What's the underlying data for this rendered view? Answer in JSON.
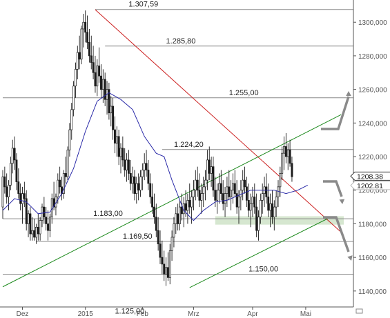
{
  "chart_data": {
    "type": "candlestick",
    "x_axis": {
      "labels": [
        "Dez",
        "2015",
        "Feb",
        "Mrz",
        "Apr",
        "Mai"
      ],
      "label_bar_index": [
        10,
        42,
        71,
        97,
        127,
        154
      ]
    },
    "y_axis": {
      "side": "right",
      "range": [
        1132,
        1312
      ],
      "ticks": [
        1140,
        1160,
        1180,
        1200,
        1220,
        1240,
        1260,
        1280,
        1300
      ],
      "tick_labels": [
        "1140,000",
        "1160,000",
        "1180,000",
        "1200,000",
        "1220,000",
        "1240,000",
        "1260,000",
        "1280,000",
        "1300,000"
      ]
    },
    "price_boxes": [
      {
        "label": "1208.38",
        "value": 1208.38,
        "style": "bordered"
      },
      {
        "label": "1202.81",
        "value": 1202.81,
        "style": "plain"
      }
    ],
    "levels": [
      {
        "value": 1307.59,
        "label": "1.307,59",
        "from_bar": 47,
        "label_bar": 64
      },
      {
        "value": 1285.8,
        "label": "1.285,80",
        "from_bar": 52,
        "label_bar": 83
      },
      {
        "value": 1255.0,
        "label": "1.255,00",
        "from_bar": 0,
        "label_bar": 115
      },
      {
        "value": 1224.2,
        "label": "1.224,20",
        "from_bar": 81,
        "label_bar": 87
      },
      {
        "value": 1183.0,
        "label": "1.183,00",
        "from_bar": 0,
        "label_bar": 46
      },
      {
        "value": 1169.5,
        "label": "1.169,50",
        "from_bar": 17,
        "label_bar": 61
      },
      {
        "value": 1150.0,
        "label": "1.150,00",
        "from_bar": 0,
        "label_bar": 125
      },
      {
        "value": 1125.0,
        "label": "1.125,00",
        "from_bar": null,
        "label_bar": 57
      }
    ],
    "support_zone": {
      "from": 1179.5,
      "to": 1184.5,
      "from_bar": 108,
      "color": "#cfe3c8"
    },
    "trendlines": [
      {
        "color": "#cc1f1f",
        "points": [
          [
            47,
            1307.5
          ],
          [
            172,
            1175.0
          ]
        ]
      },
      {
        "color": "#1d8a1d",
        "points": [
          [
            0,
            1142.5
          ],
          [
            172,
            1245.0
          ]
        ]
      },
      {
        "color": "#1d8a1d",
        "points": [
          [
            95,
            1142.0
          ],
          [
            165,
            1183.0
          ]
        ]
      }
    ],
    "moving_average": [
      [
        0,
        1188
      ],
      [
        6,
        1195
      ],
      [
        12,
        1193
      ],
      [
        18,
        1186
      ],
      [
        24,
        1187
      ],
      [
        30,
        1198
      ],
      [
        36,
        1213
      ],
      [
        42,
        1235
      ],
      [
        48,
        1253
      ],
      [
        54,
        1258
      ],
      [
        60,
        1254
      ],
      [
        66,
        1248
      ],
      [
        72,
        1232
      ],
      [
        78,
        1222
      ],
      [
        82,
        1220
      ],
      [
        86,
        1206
      ],
      [
        92,
        1188
      ],
      [
        97,
        1182
      ],
      [
        102,
        1188
      ],
      [
        108,
        1193
      ],
      [
        114,
        1194
      ],
      [
        120,
        1197
      ],
      [
        126,
        1200
      ],
      [
        132,
        1200
      ],
      [
        138,
        1200
      ],
      [
        144,
        1198
      ],
      [
        150,
        1200
      ],
      [
        155,
        1203
      ]
    ],
    "candles": [
      [
        1190,
        1212,
        1183,
        1208
      ],
      [
        1208,
        1214,
        1198,
        1202
      ],
      [
        1202,
        1210,
        1192,
        1196
      ],
      [
        1196,
        1206,
        1188,
        1203
      ],
      [
        1203,
        1220,
        1200,
        1216
      ],
      [
        1216,
        1230,
        1210,
        1225
      ],
      [
        1225,
        1232,
        1212,
        1218
      ],
      [
        1218,
        1222,
        1200,
        1205
      ],
      [
        1205,
        1213,
        1195,
        1198
      ],
      [
        1198,
        1204,
        1188,
        1192
      ],
      [
        1192,
        1202,
        1180,
        1198
      ],
      [
        1198,
        1205,
        1190,
        1195
      ],
      [
        1195,
        1200,
        1176,
        1180
      ],
      [
        1180,
        1188,
        1172,
        1186
      ],
      [
        1186,
        1190,
        1170,
        1174
      ],
      [
        1174,
        1184,
        1170,
        1176
      ],
      [
        1176,
        1183,
        1170,
        1172
      ],
      [
        1172,
        1180,
        1168,
        1178
      ],
      [
        1178,
        1186,
        1170,
        1174
      ],
      [
        1174,
        1184,
        1170,
        1182
      ],
      [
        1182,
        1192,
        1178,
        1190
      ],
      [
        1190,
        1196,
        1180,
        1184
      ],
      [
        1184,
        1190,
        1176,
        1180
      ],
      [
        1180,
        1188,
        1170,
        1176
      ],
      [
        1176,
        1186,
        1172,
        1184
      ],
      [
        1184,
        1198,
        1180,
        1195
      ],
      [
        1195,
        1205,
        1188,
        1190
      ],
      [
        1190,
        1198,
        1185,
        1196
      ],
      [
        1196,
        1210,
        1192,
        1206
      ],
      [
        1206,
        1214,
        1198,
        1202
      ],
      [
        1202,
        1208,
        1194,
        1198
      ],
      [
        1198,
        1212,
        1195,
        1210
      ],
      [
        1210,
        1220,
        1204,
        1208
      ],
      [
        1208,
        1226,
        1206,
        1224
      ],
      [
        1224,
        1240,
        1220,
        1236
      ],
      [
        1236,
        1252,
        1230,
        1248
      ],
      [
        1248,
        1265,
        1244,
        1262
      ],
      [
        1262,
        1276,
        1255,
        1272
      ],
      [
        1272,
        1286,
        1266,
        1282
      ],
      [
        1282,
        1292,
        1272,
        1278
      ],
      [
        1278,
        1298,
        1275,
        1296
      ],
      [
        1296,
        1305,
        1285,
        1300
      ],
      [
        1300,
        1307,
        1288,
        1294
      ],
      [
        1294,
        1304,
        1284,
        1288
      ],
      [
        1288,
        1296,
        1276,
        1280
      ],
      [
        1280,
        1292,
        1272,
        1276
      ],
      [
        1276,
        1286,
        1266,
        1270
      ],
      [
        1270,
        1280,
        1258,
        1262
      ],
      [
        1262,
        1278,
        1256,
        1274
      ],
      [
        1274,
        1285,
        1264,
        1268
      ],
      [
        1268,
        1275,
        1255,
        1260
      ],
      [
        1260,
        1272,
        1252,
        1266
      ],
      [
        1266,
        1270,
        1250,
        1254
      ],
      [
        1254,
        1265,
        1245,
        1260
      ],
      [
        1260,
        1264,
        1242,
        1246
      ],
      [
        1246,
        1256,
        1238,
        1250
      ],
      [
        1250,
        1255,
        1230,
        1236
      ],
      [
        1236,
        1244,
        1222,
        1228
      ],
      [
        1228,
        1238,
        1220,
        1232
      ],
      [
        1232,
        1236,
        1215,
        1220
      ],
      [
        1220,
        1228,
        1210,
        1225
      ],
      [
        1225,
        1232,
        1214,
        1218
      ],
      [
        1218,
        1225,
        1208,
        1212
      ],
      [
        1212,
        1222,
        1205,
        1218
      ],
      [
        1218,
        1224,
        1206,
        1210
      ],
      [
        1210,
        1218,
        1200,
        1204
      ],
      [
        1204,
        1214,
        1198,
        1208
      ],
      [
        1208,
        1212,
        1194,
        1198
      ],
      [
        1198,
        1208,
        1192,
        1204
      ],
      [
        1204,
        1210,
        1194,
        1200
      ],
      [
        1200,
        1212,
        1196,
        1208
      ],
      [
        1208,
        1216,
        1200,
        1212
      ],
      [
        1212,
        1222,
        1206,
        1216
      ],
      [
        1216,
        1224,
        1208,
        1212
      ],
      [
        1212,
        1218,
        1200,
        1204
      ],
      [
        1204,
        1210,
        1192,
        1196
      ],
      [
        1196,
        1204,
        1186,
        1190
      ],
      [
        1190,
        1198,
        1180,
        1184
      ],
      [
        1184,
        1192,
        1172,
        1176
      ],
      [
        1176,
        1184,
        1164,
        1168
      ],
      [
        1168,
        1176,
        1156,
        1160
      ],
      [
        1160,
        1170,
        1150,
        1156
      ],
      [
        1156,
        1164,
        1146,
        1150
      ],
      [
        1150,
        1160,
        1143,
        1154
      ],
      [
        1154,
        1163,
        1146,
        1148
      ],
      [
        1148,
        1168,
        1144,
        1164
      ],
      [
        1164,
        1176,
        1158,
        1172
      ],
      [
        1172,
        1184,
        1166,
        1180
      ],
      [
        1180,
        1190,
        1174,
        1186
      ],
      [
        1186,
        1192,
        1176,
        1180
      ],
      [
        1180,
        1194,
        1176,
        1190
      ],
      [
        1190,
        1198,
        1182,
        1186
      ],
      [
        1186,
        1196,
        1178,
        1192
      ],
      [
        1192,
        1200,
        1184,
        1188
      ],
      [
        1188,
        1198,
        1180,
        1194
      ],
      [
        1194,
        1204,
        1186,
        1190
      ],
      [
        1190,
        1200,
        1180,
        1196
      ],
      [
        1196,
        1206,
        1188,
        1200
      ],
      [
        1200,
        1212,
        1194,
        1206
      ],
      [
        1206,
        1214,
        1196,
        1200
      ],
      [
        1200,
        1210,
        1190,
        1194
      ],
      [
        1194,
        1204,
        1186,
        1198
      ],
      [
        1198,
        1208,
        1190,
        1202
      ],
      [
        1202,
        1212,
        1194,
        1206
      ],
      [
        1206,
        1224,
        1200,
        1218
      ],
      [
        1218,
        1226,
        1206,
        1210
      ],
      [
        1210,
        1220,
        1202,
        1214
      ],
      [
        1214,
        1220,
        1196,
        1200
      ],
      [
        1200,
        1208,
        1190,
        1194
      ],
      [
        1194,
        1204,
        1186,
        1200
      ],
      [
        1200,
        1210,
        1192,
        1204
      ],
      [
        1204,
        1212,
        1194,
        1198
      ],
      [
        1198,
        1206,
        1188,
        1192
      ],
      [
        1192,
        1202,
        1184,
        1198
      ],
      [
        1198,
        1208,
        1190,
        1202
      ],
      [
        1202,
        1212,
        1194,
        1196
      ],
      [
        1196,
        1206,
        1188,
        1200
      ],
      [
        1200,
        1210,
        1192,
        1204
      ],
      [
        1204,
        1212,
        1196,
        1198
      ],
      [
        1198,
        1206,
        1186,
        1190
      ],
      [
        1190,
        1200,
        1180,
        1196
      ],
      [
        1196,
        1206,
        1188,
        1200
      ],
      [
        1200,
        1212,
        1194,
        1206
      ],
      [
        1206,
        1214,
        1198,
        1202
      ],
      [
        1202,
        1208,
        1190,
        1194
      ],
      [
        1194,
        1204,
        1184,
        1188
      ],
      [
        1188,
        1198,
        1178,
        1192
      ],
      [
        1192,
        1202,
        1184,
        1196
      ],
      [
        1196,
        1204,
        1186,
        1190
      ],
      [
        1190,
        1198,
        1172,
        1176
      ],
      [
        1176,
        1188,
        1170,
        1184
      ],
      [
        1184,
        1198,
        1180,
        1194
      ],
      [
        1194,
        1204,
        1186,
        1198
      ],
      [
        1198,
        1208,
        1190,
        1202
      ],
      [
        1202,
        1210,
        1192,
        1196
      ],
      [
        1196,
        1204,
        1184,
        1188
      ],
      [
        1188,
        1198,
        1178,
        1192
      ],
      [
        1192,
        1200,
        1180,
        1184
      ],
      [
        1184,
        1194,
        1176,
        1190
      ],
      [
        1190,
        1200,
        1184,
        1196
      ],
      [
        1196,
        1206,
        1190,
        1202
      ],
      [
        1202,
        1214,
        1196,
        1210
      ],
      [
        1210,
        1226,
        1206,
        1222
      ],
      [
        1222,
        1232,
        1212,
        1226
      ],
      [
        1226,
        1234,
        1216,
        1220
      ],
      [
        1220,
        1228,
        1212,
        1224
      ],
      [
        1224,
        1230,
        1214,
        1216
      ],
      [
        1216,
        1220,
        1205,
        1208
      ]
    ]
  },
  "colors": {
    "candle": "#1a1a1a",
    "moving_average": "#2a2aa8",
    "grid": "#888888",
    "arrow": "#8a8a8a"
  }
}
